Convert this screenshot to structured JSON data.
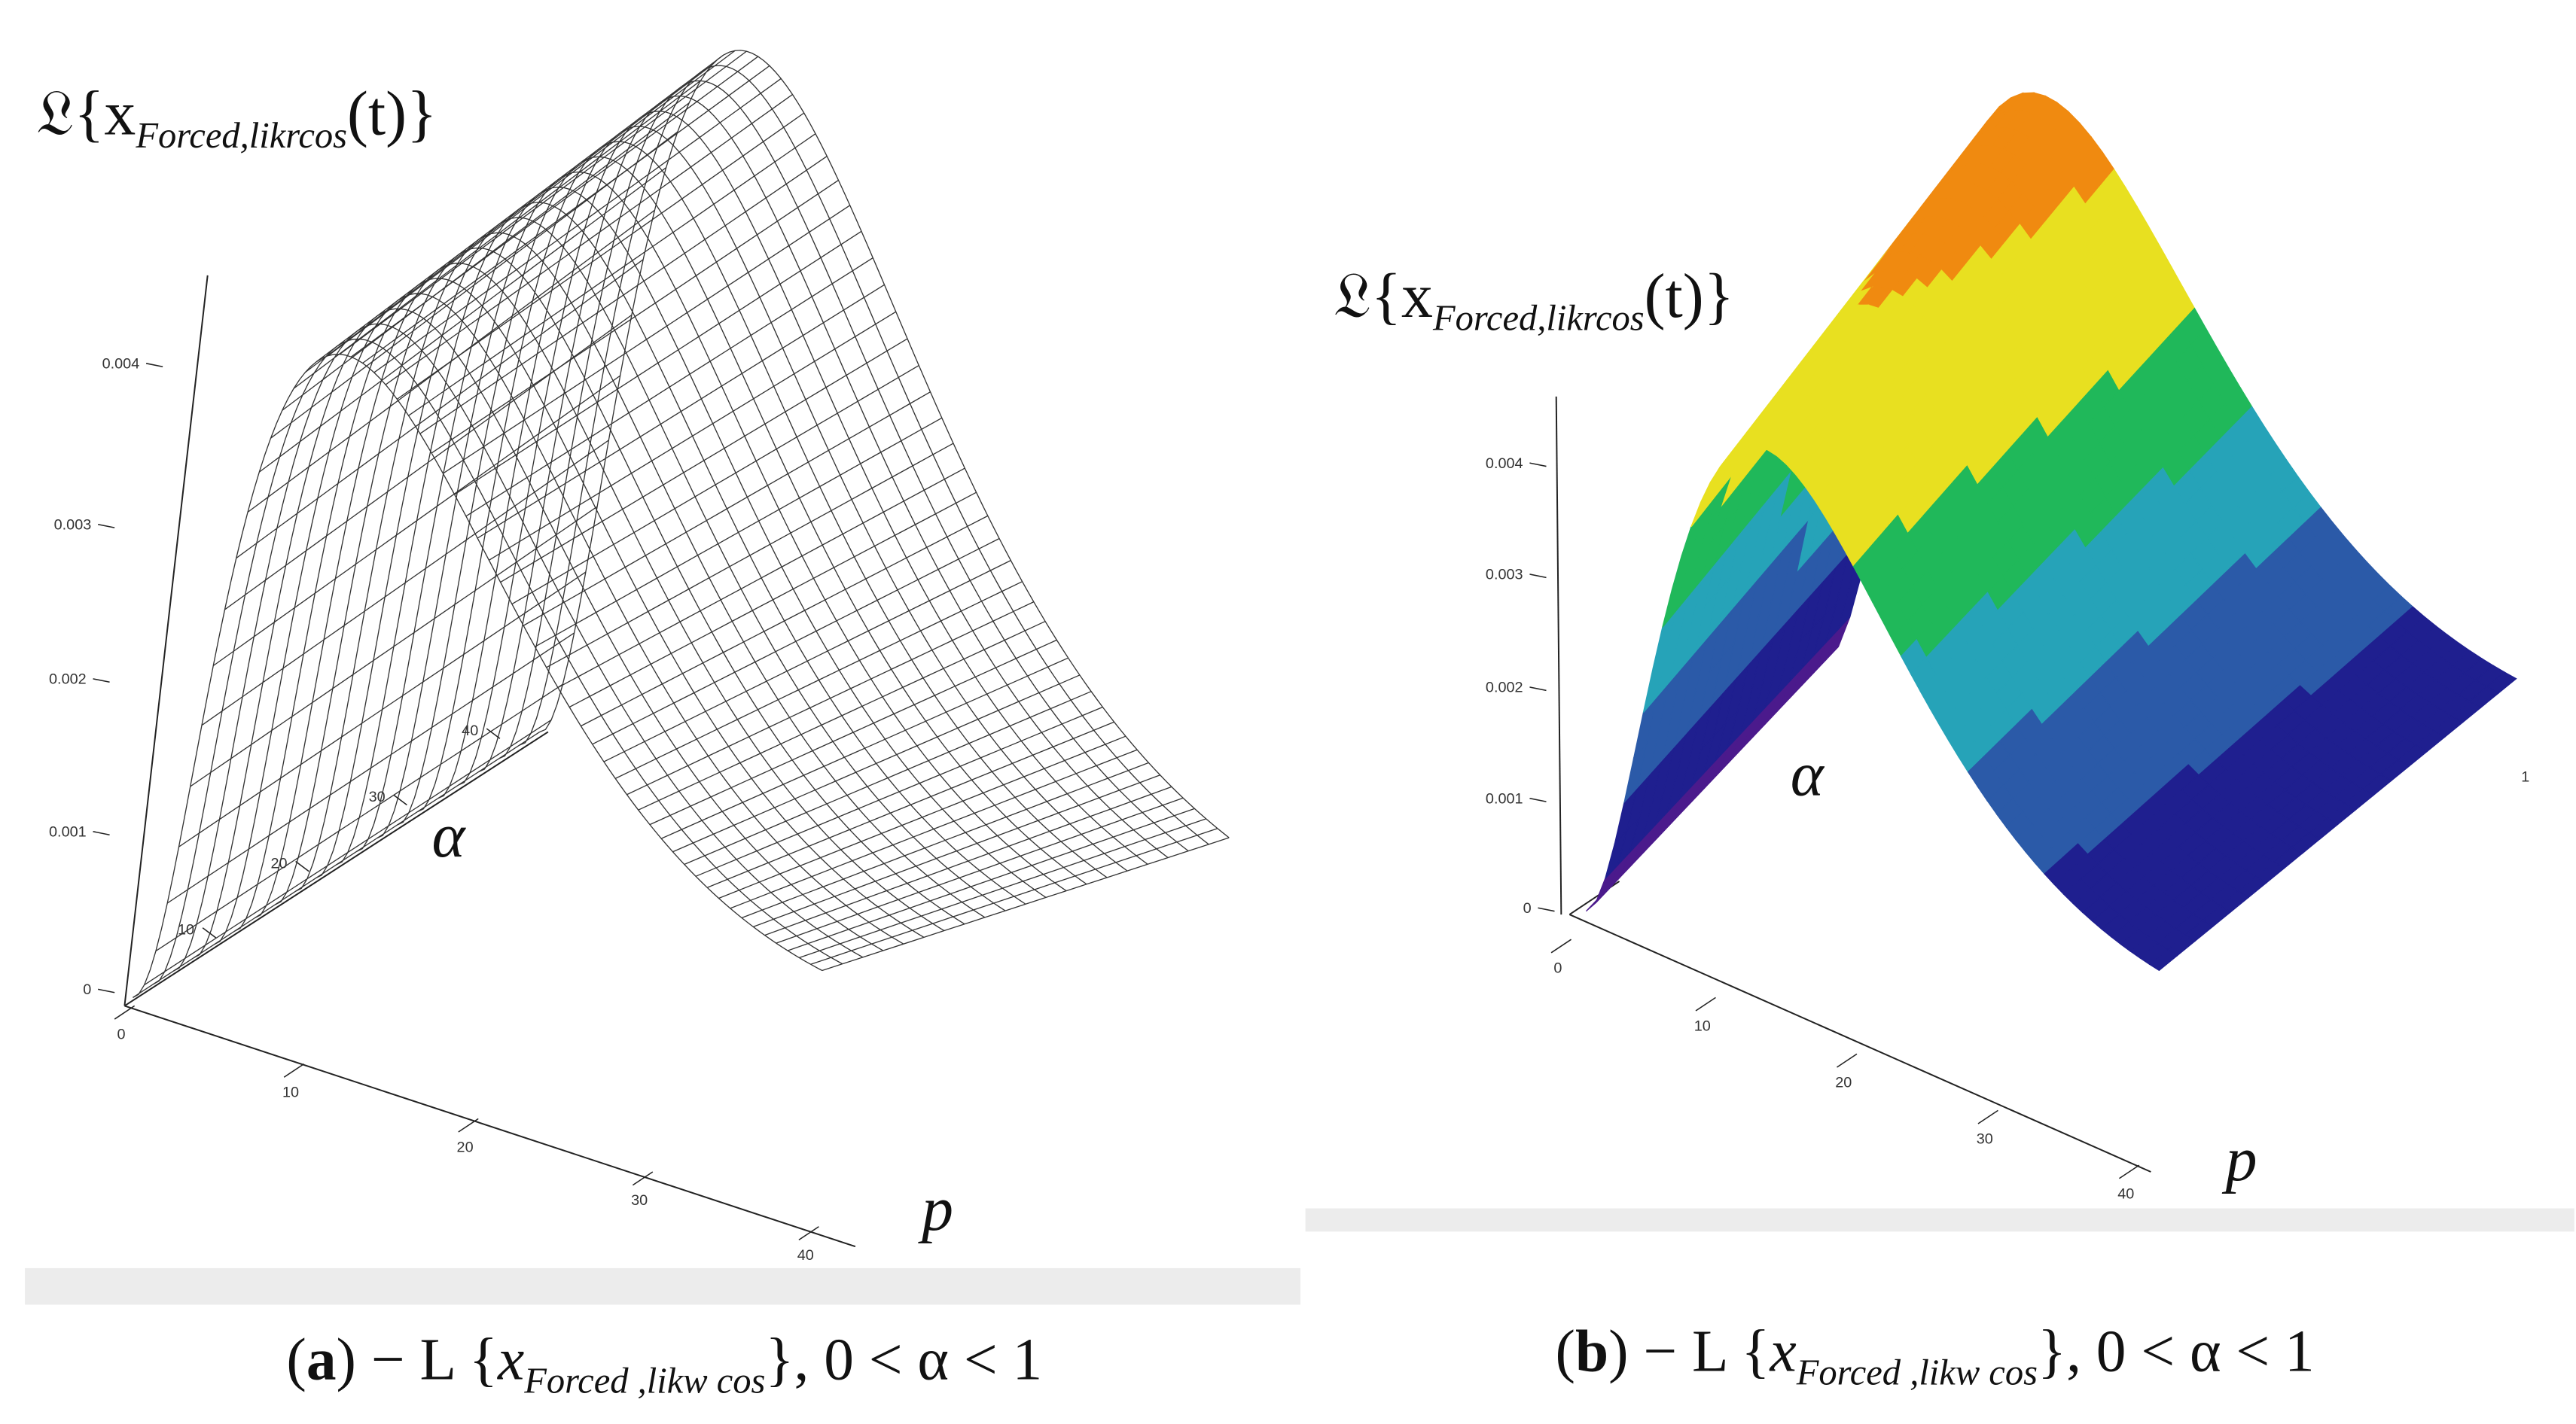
{
  "panels": [
    {
      "z_label": {
        "lead": "𝔏{x",
        "sub": "Forced,likrcos",
        "tail": "(t)}"
      },
      "z_ticks": [
        "0",
        "0.001",
        "0.002",
        "0.003",
        "0.004"
      ],
      "p_ticks": [
        "0",
        "10",
        "20",
        "30",
        "40"
      ],
      "alpha_ticks": [
        "10",
        "20",
        "30",
        "40"
      ],
      "alpha_label": "α",
      "p_label": "p",
      "caption": {
        "open": "(",
        "tag": "a",
        "mid": ") − L {",
        "x": "x",
        "sub": "Forced  ,likw cos",
        "tail": "}, 0 < α < 1"
      }
    },
    {
      "z_label": {
        "lead": "𝔏{x",
        "sub": "Forced,likrcos",
        "tail": "(t)}"
      },
      "z_ticks": [
        "0",
        "0.001",
        "0.002",
        "0.003",
        "0.004"
      ],
      "p_ticks": [
        "0",
        "10",
        "20",
        "30",
        "40"
      ],
      "corner_tick": "1",
      "alpha_label": "α",
      "p_label": "p",
      "caption": {
        "open": "(",
        "tag": "b",
        "mid": ") − L {",
        "x": "x",
        "sub": "Forced  ,likw cos",
        "tail": "}, 0 < α < 1"
      }
    }
  ]
}
